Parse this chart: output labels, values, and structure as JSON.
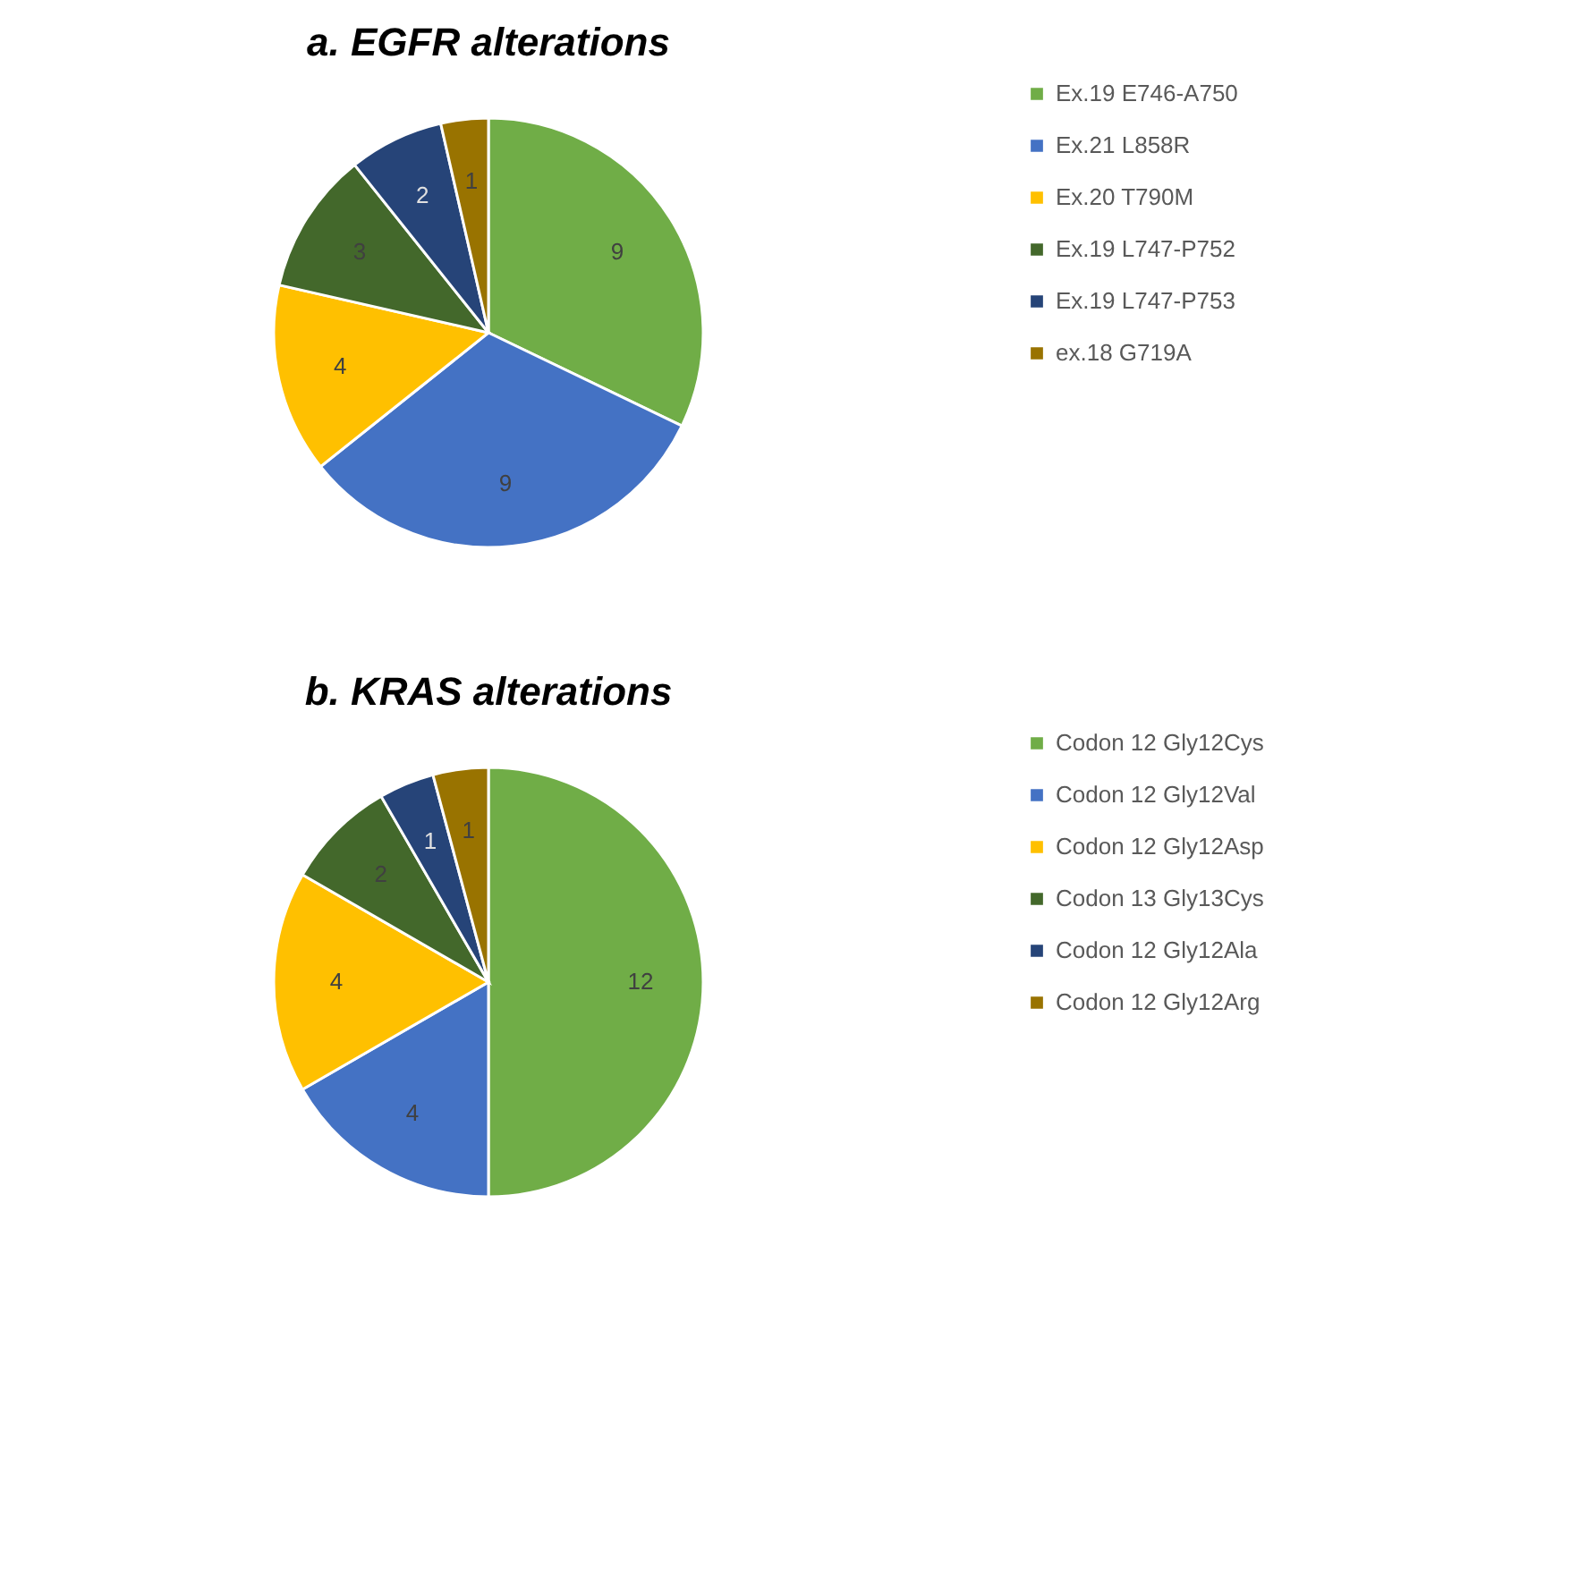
{
  "chart_data": [
    {
      "type": "pie",
      "title": "a. EGFR alterations",
      "categories": [
        "Ex.19 E746-A750",
        "Ex.21 L858R",
        "Ex.20 T790M",
        "Ex.19 L747-P752",
        "Ex.19 L747-P753",
        "ex.18 G719A"
      ],
      "values": [
        9,
        9,
        4,
        3,
        2,
        1
      ],
      "colors": [
        "#70ad47",
        "#4472c4",
        "#ffc000",
        "#43682b",
        "#264478",
        "#997300"
      ],
      "data_labels": true,
      "legend": "right"
    },
    {
      "type": "pie",
      "title": "b. KRAS alterations",
      "categories": [
        "Codon 12 Gly12Cys",
        "Codon 12 Gly12Val",
        "Codon 12 Gly12Asp",
        "Codon 13 Gly13Cys",
        "Codon 12 Gly12Ala",
        "Codon 12 Gly12Arg"
      ],
      "values": [
        12,
        4,
        4,
        2,
        1,
        1
      ],
      "colors": [
        "#70ad47",
        "#4472c4",
        "#ffc000",
        "#43682b",
        "#264478",
        "#997300"
      ],
      "data_labels": true,
      "legend": "right"
    }
  ]
}
